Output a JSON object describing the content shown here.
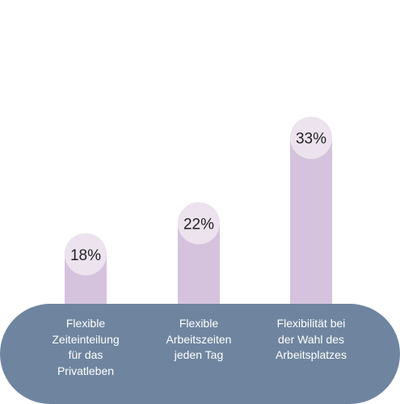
{
  "colors": {
    "bar": "#d5c3dd",
    "cap": "#ece3ef",
    "base": "#6f859f",
    "value_text": "#222222",
    "label_text": "#ffffff"
  },
  "chart_data": {
    "type": "bar",
    "categories": [
      "Flexible\nZeiteinteilung\nfür das\nPrivatleben",
      "Flexible\nArbeitszeiten\njeden Tag",
      "Flexibilität bei\nder Wahl des\nArbeitsplatzes"
    ],
    "values": [
      18,
      22,
      33
    ],
    "value_labels": [
      "18%",
      "22%",
      "33%"
    ],
    "ylim": [
      0,
      40
    ],
    "grid": false,
    "legend": "none"
  }
}
